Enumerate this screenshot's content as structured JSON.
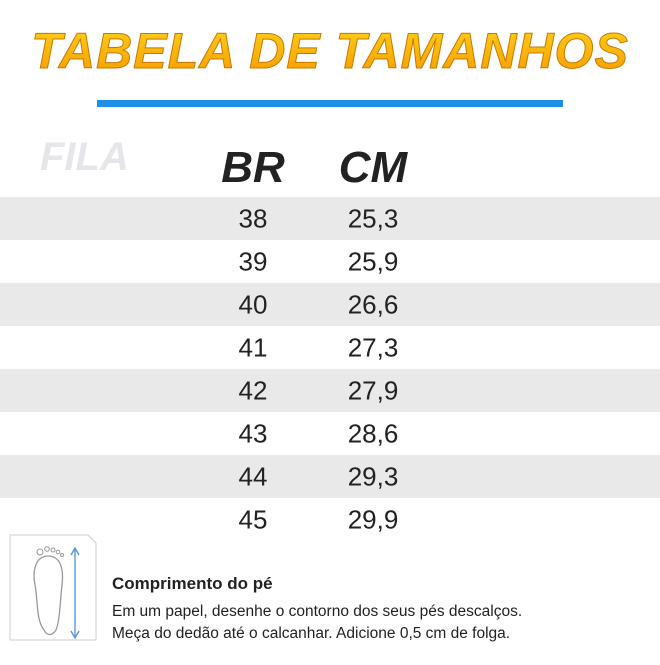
{
  "header": {
    "title": "TABELA DE TAMANHOS",
    "logo": "FILA"
  },
  "table": {
    "columns": [
      "BR",
      "CM"
    ],
    "rows": [
      [
        "38",
        "25,3"
      ],
      [
        "39",
        "25,9"
      ],
      [
        "40",
        "26,6"
      ],
      [
        "41",
        "27,3"
      ],
      [
        "42",
        "27,9"
      ],
      [
        "43",
        "28,6"
      ],
      [
        "44",
        "29,3"
      ],
      [
        "45",
        "29,9"
      ]
    ]
  },
  "note": {
    "title": "Comprimento do pé",
    "lines": [
      "Em um papel, desenhe o contorno dos seus pés descalços.",
      "Meça do dedão até o calcanhar. Adicione 0,5 cm de folga."
    ]
  }
}
